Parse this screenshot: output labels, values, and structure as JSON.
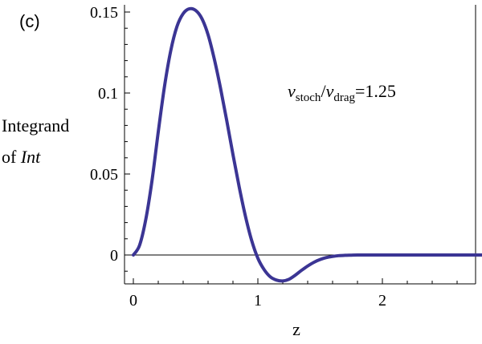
{
  "panel_label": "(c)",
  "ylabel_line1": "Integrand",
  "ylabel_line2_prefix": "of ",
  "ylabel_line2_italic": "Int",
  "xlabel": "z",
  "annotation": {
    "sym1": "ν",
    "sub1": "stoch",
    "slash": "/",
    "sym2": "ν",
    "sub2": "drag",
    "value": "=1.25"
  },
  "chart_data": {
    "type": "line",
    "xlim": [
      0,
      2.8
    ],
    "ylim": [
      -0.02,
      0.155
    ],
    "xticks": [
      0,
      1,
      2
    ],
    "xtick_labels": [
      "0",
      "1",
      "2"
    ],
    "yticks": [
      0,
      0.05,
      0.1,
      0.15
    ],
    "ytick_labels": [
      "0",
      "0.05",
      "0.1",
      "0.15"
    ],
    "grid": false,
    "line_color": "#3b3594",
    "zero_line": true,
    "series": [
      {
        "x": [
          0,
          0.05,
          0.1,
          0.15,
          0.2,
          0.25,
          0.3,
          0.35,
          0.4,
          0.45,
          0.5,
          0.55,
          0.6,
          0.65,
          0.7,
          0.75,
          0.8,
          0.85,
          0.9,
          0.95,
          1.0,
          1.05,
          1.1,
          1.15,
          1.2,
          1.25,
          1.3,
          1.35,
          1.4,
          1.45,
          1.5,
          1.55,
          1.6,
          1.65,
          1.7,
          1.75,
          1.8,
          1.9,
          2.0,
          2.2,
          2.4,
          2.6,
          2.8
        ],
        "y": [
          0,
          0.006,
          0.022,
          0.046,
          0.076,
          0.104,
          0.126,
          0.141,
          0.149,
          0.152,
          0.151,
          0.146,
          0.136,
          0.121,
          0.103,
          0.083,
          0.062,
          0.042,
          0.024,
          0.009,
          -0.002,
          -0.009,
          -0.0135,
          -0.0155,
          -0.016,
          -0.015,
          -0.0125,
          -0.0095,
          -0.0068,
          -0.0045,
          -0.0028,
          -0.0016,
          -0.0009,
          -0.0004,
          -0.0002,
          -0.0001,
          0,
          0,
          0,
          0,
          0,
          0,
          0
        ]
      }
    ]
  }
}
